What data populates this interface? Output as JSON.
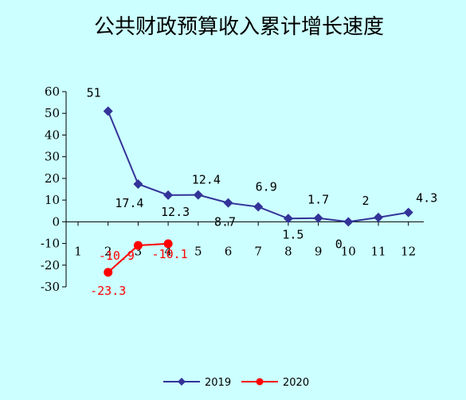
{
  "chart_data": {
    "type": "line",
    "title": "公共财政预算收入累计增长速度",
    "categories": [
      "1",
      "2",
      "3",
      "4",
      "5",
      "6",
      "7",
      "8",
      "9",
      "10",
      "11",
      "12"
    ],
    "ylim": [
      -30,
      60
    ],
    "yticks": [
      "60",
      "50",
      "40",
      "30",
      "20",
      "10",
      "0",
      "-10",
      "-20",
      "-30"
    ],
    "grid": false,
    "legend_position": "bottom",
    "series": [
      {
        "name": "2019",
        "color": "#333399",
        "marker": "diamond",
        "values": [
          null,
          51,
          17.4,
          12.3,
          12.4,
          8.7,
          6.9,
          1.5,
          1.7,
          0,
          2,
          4.3
        ],
        "labels": [
          "",
          "51",
          "17.4",
          "12.3",
          "12.4",
          "8.7",
          "6.9",
          "1.5",
          "1.7",
          "0",
          "2",
          "4.3"
        ]
      },
      {
        "name": "2020",
        "color": "#ff0000",
        "marker": "circle",
        "values": [
          null,
          -23.3,
          -10.9,
          -10.1,
          null,
          null,
          null,
          null,
          null,
          null,
          null,
          null
        ],
        "labels": [
          "",
          "-23.3",
          "-10.9",
          "-10.1",
          "",
          "",
          "",
          "",
          "",
          "",
          "",
          ""
        ]
      }
    ]
  }
}
